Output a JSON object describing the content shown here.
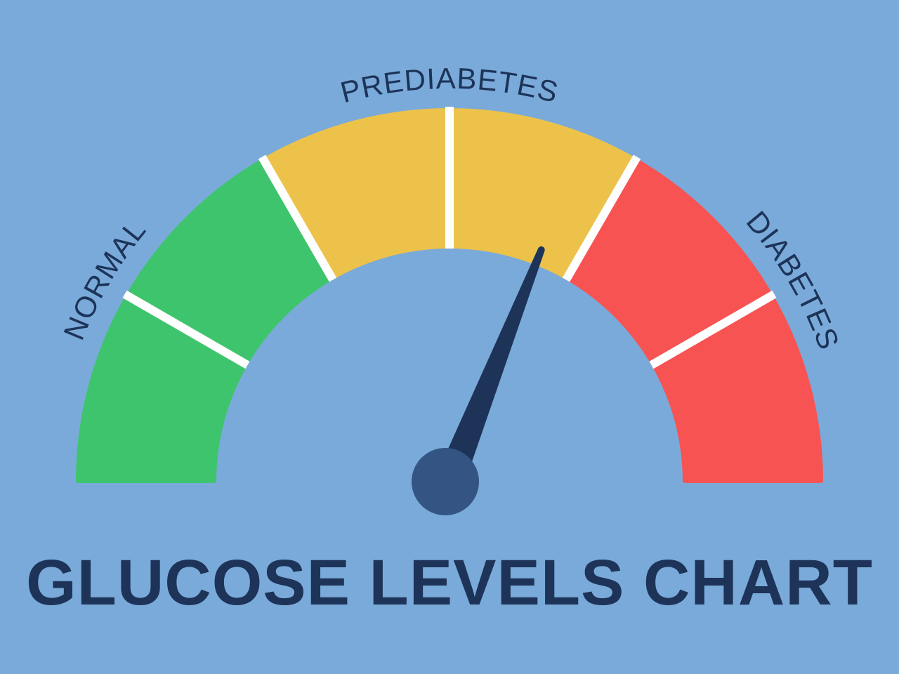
{
  "title": "GLUCOSE LEVELS CHART",
  "chart_data": {
    "type": "gauge",
    "title": "GLUCOSE LEVELS CHART",
    "zones": [
      {
        "name": "NORMAL",
        "color": "#3ec46d",
        "segments": 2
      },
      {
        "name": "PREDIABETES",
        "color": "#ecc24a",
        "segments": 2
      },
      {
        "name": "DIABETES",
        "color": "#f75353",
        "segments": 2
      }
    ],
    "needle_fraction": 0.62,
    "colors": {
      "background": "#7aaad9",
      "divider": "#ffffff",
      "needle": "#1d3358",
      "hub": "#345583",
      "text": "#1d3358"
    }
  }
}
